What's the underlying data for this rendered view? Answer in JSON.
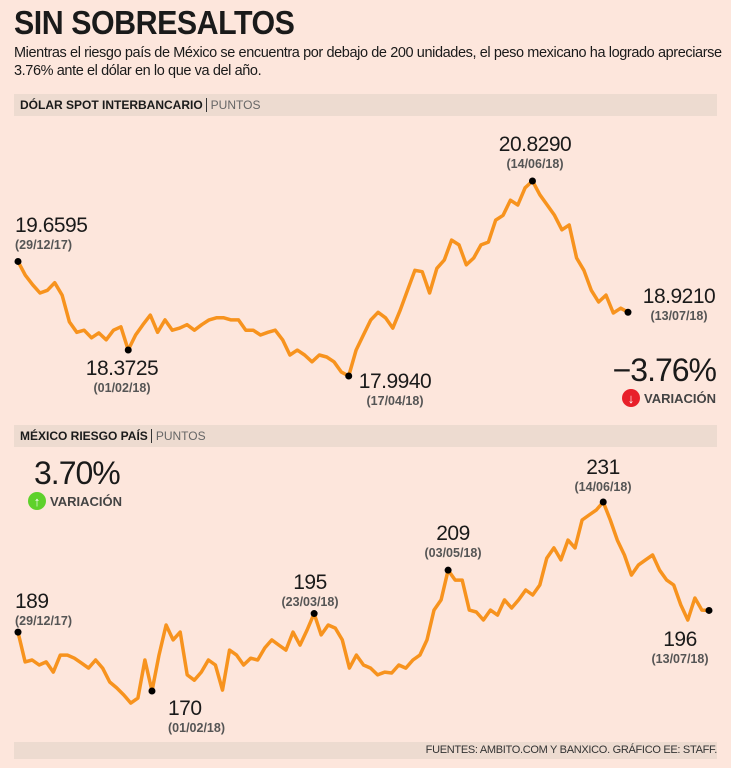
{
  "title": "SIN SOBRESALTOS",
  "subtitle": "Mientras el riesgo país de México se encuentra por debajo de 200 unidades, el peso mexicano ha logrado apreciarse 3.76% ante el dólar en lo que va del año.",
  "source": "FUENTES: AMBITO.COM Y BANXICO. GRÁFICO EE: STAFF.",
  "colors": {
    "line": "#f7931e",
    "background": "#fde6dc",
    "header_bar": "#eddbd0",
    "down": "#e8202a",
    "up": "#5ed12b"
  },
  "chart_data": [
    {
      "type": "line",
      "title": "DÓLAR SPOT INTERBANCARIO",
      "unit": "PUNTOS",
      "x_range": [
        "29/12/17",
        "13/07/18"
      ],
      "variation": {
        "value": "−3.76%",
        "label": "VARIACIÓN",
        "direction": "down",
        "icon": "arrow-down-icon"
      },
      "values": [
        19.6595,
        19.46,
        19.32,
        19.2,
        19.24,
        19.35,
        19.17,
        18.78,
        18.63,
        18.66,
        18.55,
        18.62,
        18.52,
        18.66,
        18.71,
        18.3725,
        18.59,
        18.74,
        18.88,
        18.63,
        18.81,
        18.66,
        18.69,
        18.74,
        18.66,
        18.74,
        18.81,
        18.84,
        18.84,
        18.81,
        18.81,
        18.66,
        18.66,
        18.59,
        18.63,
        18.66,
        18.52,
        18.3,
        18.37,
        18.3,
        18.2,
        18.3,
        18.27,
        18.2,
        18.05,
        17.994,
        18.37,
        18.59,
        18.81,
        18.92,
        18.84,
        18.69,
        18.95,
        19.24,
        19.53,
        19.51,
        19.2,
        19.56,
        19.68,
        19.97,
        19.9,
        19.61,
        19.71,
        19.9,
        19.94,
        20.26,
        20.33,
        20.55,
        20.48,
        20.73,
        20.829,
        20.63,
        20.48,
        20.33,
        20.12,
        20.19,
        19.71,
        19.53,
        19.24,
        19.07,
        19.17,
        18.91,
        18.98,
        18.921
      ],
      "annotations": [
        {
          "value": 19.6595,
          "label": "19.6595",
          "date": "(29/12/17)"
        },
        {
          "value": 18.3725,
          "label": "18.3725",
          "date": "(01/02/18)"
        },
        {
          "value": 17.994,
          "label": "17.9940",
          "date": "(17/04/18)"
        },
        {
          "value": 20.829,
          "label": "20.8290",
          "date": "(14/06/18)"
        },
        {
          "value": 18.921,
          "label": "18.9210",
          "date": "(13/07/18)"
        }
      ]
    },
    {
      "type": "line",
      "title": "MÉXICO RIESGO PAÍS",
      "unit": "PUNTOS",
      "x_range": [
        "29/12/17",
        "13/07/18"
      ],
      "variation": {
        "value": "3.70%",
        "label": "VARIACIÓN",
        "direction": "up",
        "icon": "arrow-up-icon"
      },
      "values": [
        189,
        179.4,
        180.0,
        178.4,
        179.4,
        176.1,
        181.6,
        181.6,
        180.6,
        179.0,
        177.4,
        180.0,
        177.4,
        172.9,
        171.0,
        168.7,
        166.1,
        167.7,
        180.0,
        170,
        181.6,
        191.3,
        186.5,
        189.0,
        175.2,
        173.5,
        176.1,
        180.0,
        178.4,
        170.3,
        183.2,
        181.6,
        178.4,
        180.6,
        180.0,
        183.9,
        186.5,
        184.8,
        183.2,
        189.0,
        184.8,
        189.7,
        195,
        188.1,
        191.3,
        190.3,
        186.5,
        177.4,
        181.6,
        178.4,
        177.4,
        175.2,
        176.1,
        175.8,
        178.4,
        177.4,
        180.0,
        181.6,
        186.5,
        196.1,
        199.4,
        209,
        205.8,
        205.8,
        196.1,
        195.5,
        192.9,
        196.1,
        194.5,
        199.4,
        196.8,
        199.4,
        202.6,
        201.0,
        204.2,
        212.9,
        216.2,
        212.3,
        218.7,
        216.2,
        225.2,
        226.8,
        228.4,
        231,
        225.2,
        218.7,
        213.9,
        207.4,
        210.7,
        212.3,
        213.9,
        209.0,
        205.8,
        204.2,
        197.8,
        192.9,
        200.0,
        196.1,
        196
      ],
      "annotations": [
        {
          "value": 189,
          "label": "189",
          "date": "(29/12/17)"
        },
        {
          "value": 170,
          "label": "170",
          "date": "(01/02/18)"
        },
        {
          "value": 195,
          "label": "195",
          "date": "(23/03/18)"
        },
        {
          "value": 209,
          "label": "209",
          "date": "(03/05/18)"
        },
        {
          "value": 231,
          "label": "231",
          "date": "(14/06/18)"
        },
        {
          "value": 196,
          "label": "196",
          "date": "(13/07/18)"
        }
      ]
    }
  ]
}
